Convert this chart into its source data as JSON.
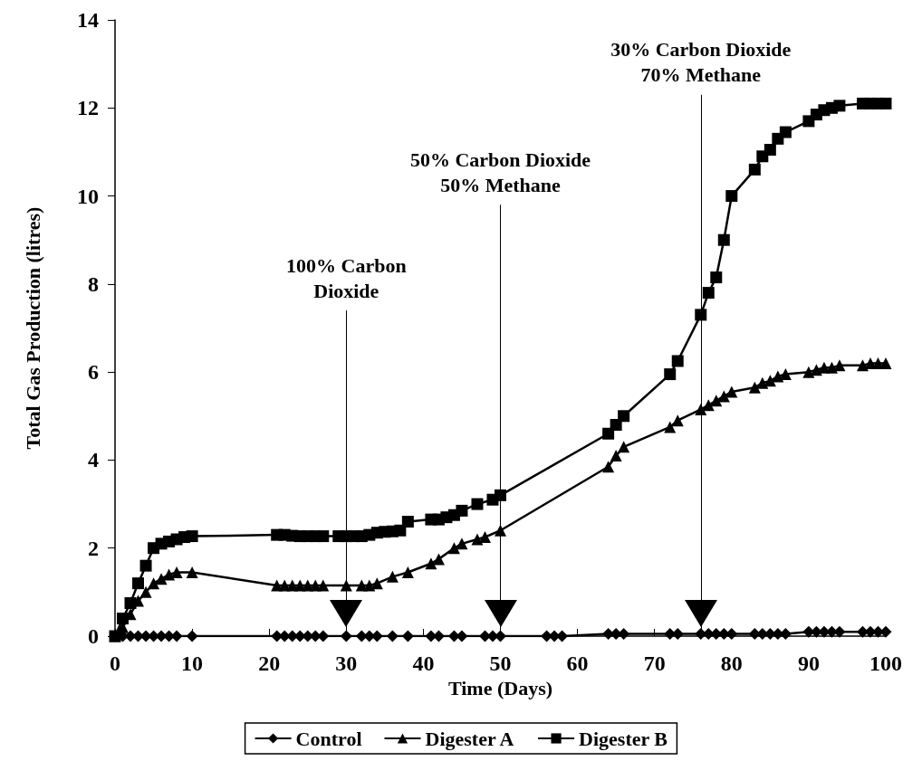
{
  "chart_data": {
    "type": "line",
    "xlabel": "Time (Days)",
    "ylabel": "Total Gas Production (litres)",
    "xlim": [
      0,
      100
    ],
    "xticks": [
      0,
      10,
      20,
      30,
      40,
      50,
      60,
      70,
      80,
      90,
      100
    ],
    "ylim": [
      0,
      14
    ],
    "yticks": [
      0,
      2,
      4,
      6,
      8,
      10,
      12,
      14
    ],
    "grid": false,
    "legend": "bottom",
    "line_style": "solid",
    "series": [
      {
        "name": "Control",
        "color": "#000000",
        "marker": "diamond",
        "x": [
          0,
          1,
          2,
          3,
          4,
          5,
          6,
          7,
          8,
          10,
          21,
          22,
          23,
          24,
          25,
          26,
          27,
          30,
          32,
          33,
          34,
          36,
          38,
          41,
          42,
          44,
          45,
          48,
          49,
          50,
          56,
          57,
          58,
          64,
          65,
          66,
          72,
          73,
          76,
          77,
          78,
          79,
          80,
          83,
          84,
          85,
          86,
          87,
          90,
          91,
          92,
          93,
          94,
          97,
          98,
          99,
          100
        ],
        "values": [
          0,
          0,
          0,
          0,
          0,
          0,
          0,
          0,
          0,
          0,
          0,
          0,
          0,
          0,
          0,
          0,
          0,
          0,
          0,
          0,
          0,
          0,
          0,
          0,
          0,
          0,
          0,
          0,
          0,
          0,
          0,
          0,
          0,
          0.05,
          0.05,
          0.05,
          0.05,
          0.05,
          0.05,
          0.05,
          0.05,
          0.05,
          0.05,
          0.05,
          0.05,
          0.05,
          0.05,
          0.05,
          0.1,
          0.1,
          0.1,
          0.1,
          0.1,
          0.1,
          0.1,
          0.1,
          0.1
        ]
      },
      {
        "name": "Digester A",
        "color": "#000000",
        "marker": "triangle",
        "x": [
          0,
          1,
          2,
          3,
          4,
          5,
          6,
          7,
          8,
          10,
          21,
          22,
          23,
          24,
          25,
          26,
          27,
          30,
          32,
          33,
          34,
          36,
          38,
          41,
          42,
          44,
          45,
          47,
          48,
          50,
          64,
          65,
          66,
          72,
          73,
          76,
          77,
          78,
          79,
          80,
          83,
          84,
          85,
          86,
          87,
          90,
          91,
          92,
          93,
          94,
          97,
          98,
          99,
          100
        ],
        "values": [
          0,
          0.2,
          0.5,
          0.8,
          1.0,
          1.2,
          1.3,
          1.4,
          1.45,
          1.45,
          1.15,
          1.15,
          1.15,
          1.15,
          1.15,
          1.15,
          1.15,
          1.15,
          1.15,
          1.15,
          1.2,
          1.35,
          1.45,
          1.65,
          1.75,
          2.0,
          2.1,
          2.2,
          2.25,
          2.4,
          3.85,
          4.1,
          4.3,
          4.75,
          4.9,
          5.15,
          5.25,
          5.35,
          5.45,
          5.55,
          5.65,
          5.75,
          5.8,
          5.9,
          5.95,
          6.0,
          6.05,
          6.1,
          6.1,
          6.15,
          6.15,
          6.2,
          6.2,
          6.2
        ]
      },
      {
        "name": "Digester B",
        "color": "#000000",
        "marker": "square",
        "x": [
          0,
          1,
          2,
          3,
          4,
          5,
          6,
          7,
          8,
          9,
          10,
          21,
          22,
          23,
          24,
          25,
          26,
          27,
          29,
          30,
          31,
          32,
          33,
          34,
          35,
          36,
          37,
          38,
          41,
          42,
          43,
          44,
          45,
          47,
          49,
          50,
          64,
          65,
          66,
          72,
          73,
          76,
          77,
          78,
          79,
          80,
          83,
          84,
          85,
          86,
          87,
          90,
          91,
          92,
          93,
          94,
          97,
          98,
          99,
          100
        ],
        "values": [
          0,
          0.4,
          0.75,
          1.2,
          1.6,
          2.0,
          2.1,
          2.15,
          2.2,
          2.25,
          2.27,
          2.3,
          2.3,
          2.28,
          2.27,
          2.27,
          2.27,
          2.27,
          2.27,
          2.27,
          2.27,
          2.27,
          2.3,
          2.35,
          2.37,
          2.38,
          2.4,
          2.6,
          2.65,
          2.65,
          2.7,
          2.75,
          2.85,
          3.0,
          3.1,
          3.2,
          4.6,
          4.8,
          5.0,
          5.95,
          6.25,
          7.3,
          7.8,
          8.15,
          9.0,
          10.0,
          10.6,
          10.9,
          11.05,
          11.3,
          11.45,
          11.7,
          11.85,
          11.95,
          12.0,
          12.05,
          12.1,
          12.1,
          12.1,
          12.1
        ]
      }
    ],
    "ref_lines": [
      {
        "axis": "x",
        "value": 30,
        "color": "#000000"
      },
      {
        "axis": "x",
        "value": 50,
        "color": "#000000"
      },
      {
        "axis": "x",
        "value": 76,
        "color": "#000000"
      }
    ],
    "annotations": [
      {
        "text": "100% Carbon\nDioxide",
        "x": 30,
        "y": 7.4
      },
      {
        "text": "50% Carbon Dioxide\n50% Methane",
        "x": 50,
        "y": 9.8
      },
      {
        "text": "30% Carbon Dioxide\n70% Methane",
        "x": 76,
        "y": 12.3
      }
    ]
  }
}
